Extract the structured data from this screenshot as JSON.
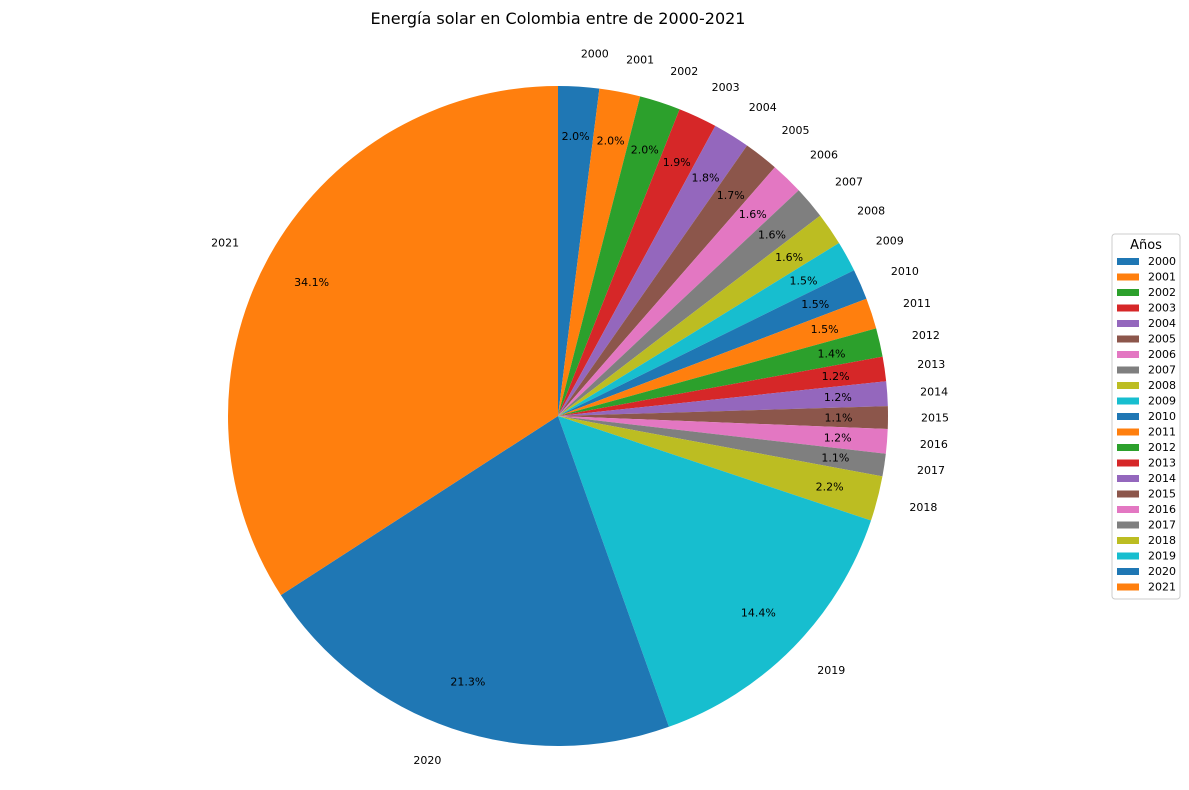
{
  "chart_data": {
    "type": "pie",
    "title": "Energía solar en Colombia entre de 2000-2021",
    "categories": [
      "2000",
      "2001",
      "2002",
      "2003",
      "2004",
      "2005",
      "2006",
      "2007",
      "2008",
      "2009",
      "2010",
      "2011",
      "2012",
      "2013",
      "2014",
      "2015",
      "2016",
      "2017",
      "2018",
      "2019",
      "2020",
      "2021"
    ],
    "values": [
      2.0,
      2.0,
      2.0,
      1.9,
      1.8,
      1.7,
      1.6,
      1.6,
      1.6,
      1.5,
      1.5,
      1.5,
      1.4,
      1.2,
      1.2,
      1.1,
      1.2,
      1.1,
      2.2,
      14.4,
      21.3,
      34.1
    ],
    "percent_labels": [
      "2.0%",
      "2.0%",
      "2.0%",
      "1.9%",
      "1.8%",
      "1.7%",
      "1.6%",
      "1.6%",
      "1.6%",
      "1.5%",
      "1.5%",
      "1.5%",
      "1.4%",
      "1.2%",
      "1.2%",
      "1.1%",
      "1.2%",
      "1.1%",
      "2.2%",
      "14.4%",
      "21.3%",
      "34.1%"
    ],
    "colors": [
      "#1f77b4",
      "#ff7f0e",
      "#2ca02c",
      "#d62728",
      "#9467bd",
      "#8c564b",
      "#e377c2",
      "#7f7f7f",
      "#bcbd22",
      "#17becf",
      "#1f77b4",
      "#ff7f0e",
      "#2ca02c",
      "#d62728",
      "#9467bd",
      "#8c564b",
      "#e377c2",
      "#7f7f7f",
      "#bcbd22",
      "#17becf",
      "#1f77b4",
      "#ff7f0e"
    ],
    "start_angle": "top, clockwise",
    "legend": {
      "title": "Años",
      "placement": "right"
    }
  }
}
